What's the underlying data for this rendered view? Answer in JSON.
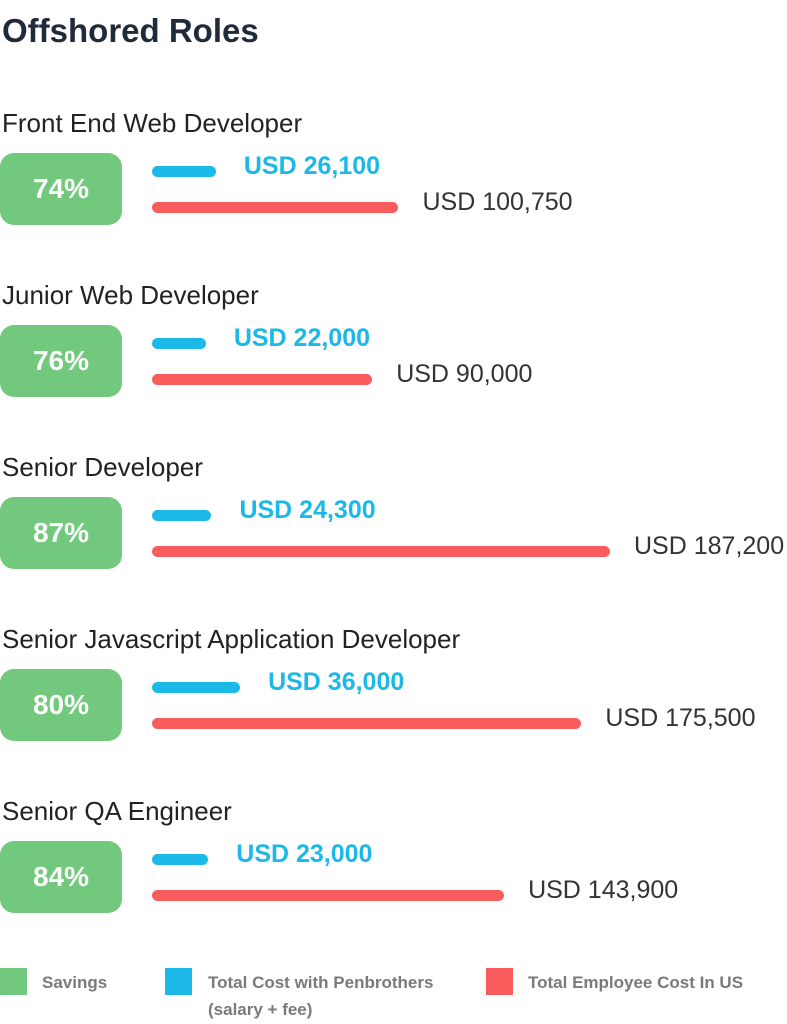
{
  "chart_data": {
    "type": "bar",
    "title": "Offshored Roles",
    "categories": [
      "Front End Web Developer",
      "Junior Web Developer",
      "Senior Developer",
      "Senior Javascript Application Developer",
      "Senior QA Engineer"
    ],
    "series": [
      {
        "name": "Savings",
        "color": "#72c97d",
        "values": [
          74,
          76,
          87,
          80,
          84
        ],
        "value_labels": [
          "74%",
          "76%",
          "87%",
          "80%",
          "84%"
        ]
      },
      {
        "name": "Total Cost with Penbrothers (salary + fee)",
        "color": "#1cb9e8",
        "values": [
          26100,
          22000,
          24300,
          36000,
          23000
        ],
        "value_labels": [
          "USD 26,100",
          "USD 22,000",
          "USD 24,300",
          "USD 36,000",
          "USD 23,000"
        ]
      },
      {
        "name": "Total Employee Cost In US",
        "color": "#f95c5c",
        "values": [
          100750,
          90000,
          187200,
          175500,
          143900
        ],
        "value_labels": [
          "USD 100,750",
          "USD 90,000",
          "USD 187,200",
          "USD 175,500",
          "USD 143,900"
        ]
      }
    ]
  }
}
